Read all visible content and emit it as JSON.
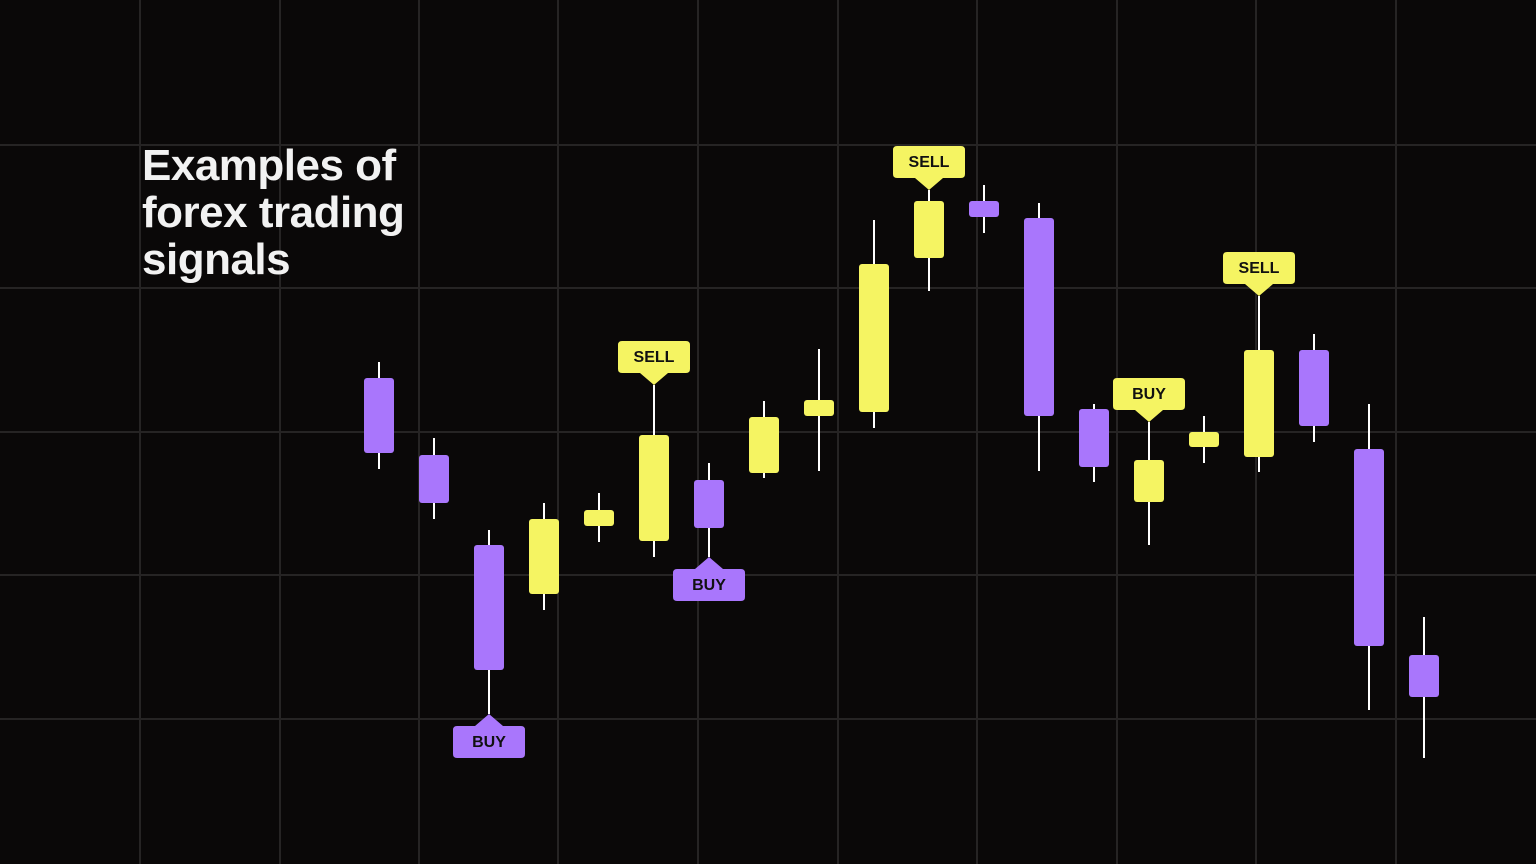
{
  "chart_data": {
    "type": "candlestick",
    "title": "Examples of forex trading signals",
    "up_color": "#f5f462",
    "down_color": "#a976fc",
    "candles": [
      {
        "open": 486,
        "high": 502,
        "low": 395,
        "close": 411
      },
      {
        "open": 409,
        "high": 426,
        "low": 345,
        "close": 361
      },
      {
        "open": 319,
        "high": 334,
        "low": 150,
        "close": 194,
        "signal": "BUY"
      },
      {
        "open": 270,
        "high": 361,
        "low": 254,
        "close": 345
      },
      {
        "open": 338,
        "high": 371,
        "low": 322,
        "close": 354
      },
      {
        "open": 323,
        "high": 479,
        "low": 307,
        "close": 429,
        "signal": "SELL"
      },
      {
        "open": 384,
        "high": 401,
        "low": 307,
        "close": 336,
        "signal": "BUY"
      },
      {
        "open": 391,
        "high": 463,
        "low": 386,
        "close": 447
      },
      {
        "open": 448,
        "high": 515,
        "low": 393,
        "close": 464
      },
      {
        "open": 452,
        "high": 644,
        "low": 436,
        "close": 600
      },
      {
        "open": 606,
        "high": 674,
        "low": 573,
        "close": 663,
        "signal": "SELL"
      },
      {
        "open": 663,
        "high": 679,
        "low": 631,
        "close": 647
      },
      {
        "open": 646,
        "high": 661,
        "low": 393,
        "close": 448
      },
      {
        "open": 455,
        "high": 460,
        "low": 382,
        "close": 397
      },
      {
        "open": 362,
        "high": 442,
        "low": 319,
        "close": 404,
        "signal": "BUY"
      },
      {
        "open": 417,
        "high": 448,
        "low": 401,
        "close": 432
      },
      {
        "open": 407,
        "high": 568,
        "low": 392,
        "close": 514,
        "signal": "SELL"
      },
      {
        "open": 514,
        "high": 530,
        "low": 422,
        "close": 438
      },
      {
        "open": 415,
        "high": 460,
        "low": 154,
        "close": 218
      },
      {
        "open": 209,
        "high": 247,
        "low": 106,
        "close": 167
      }
    ]
  }
}
